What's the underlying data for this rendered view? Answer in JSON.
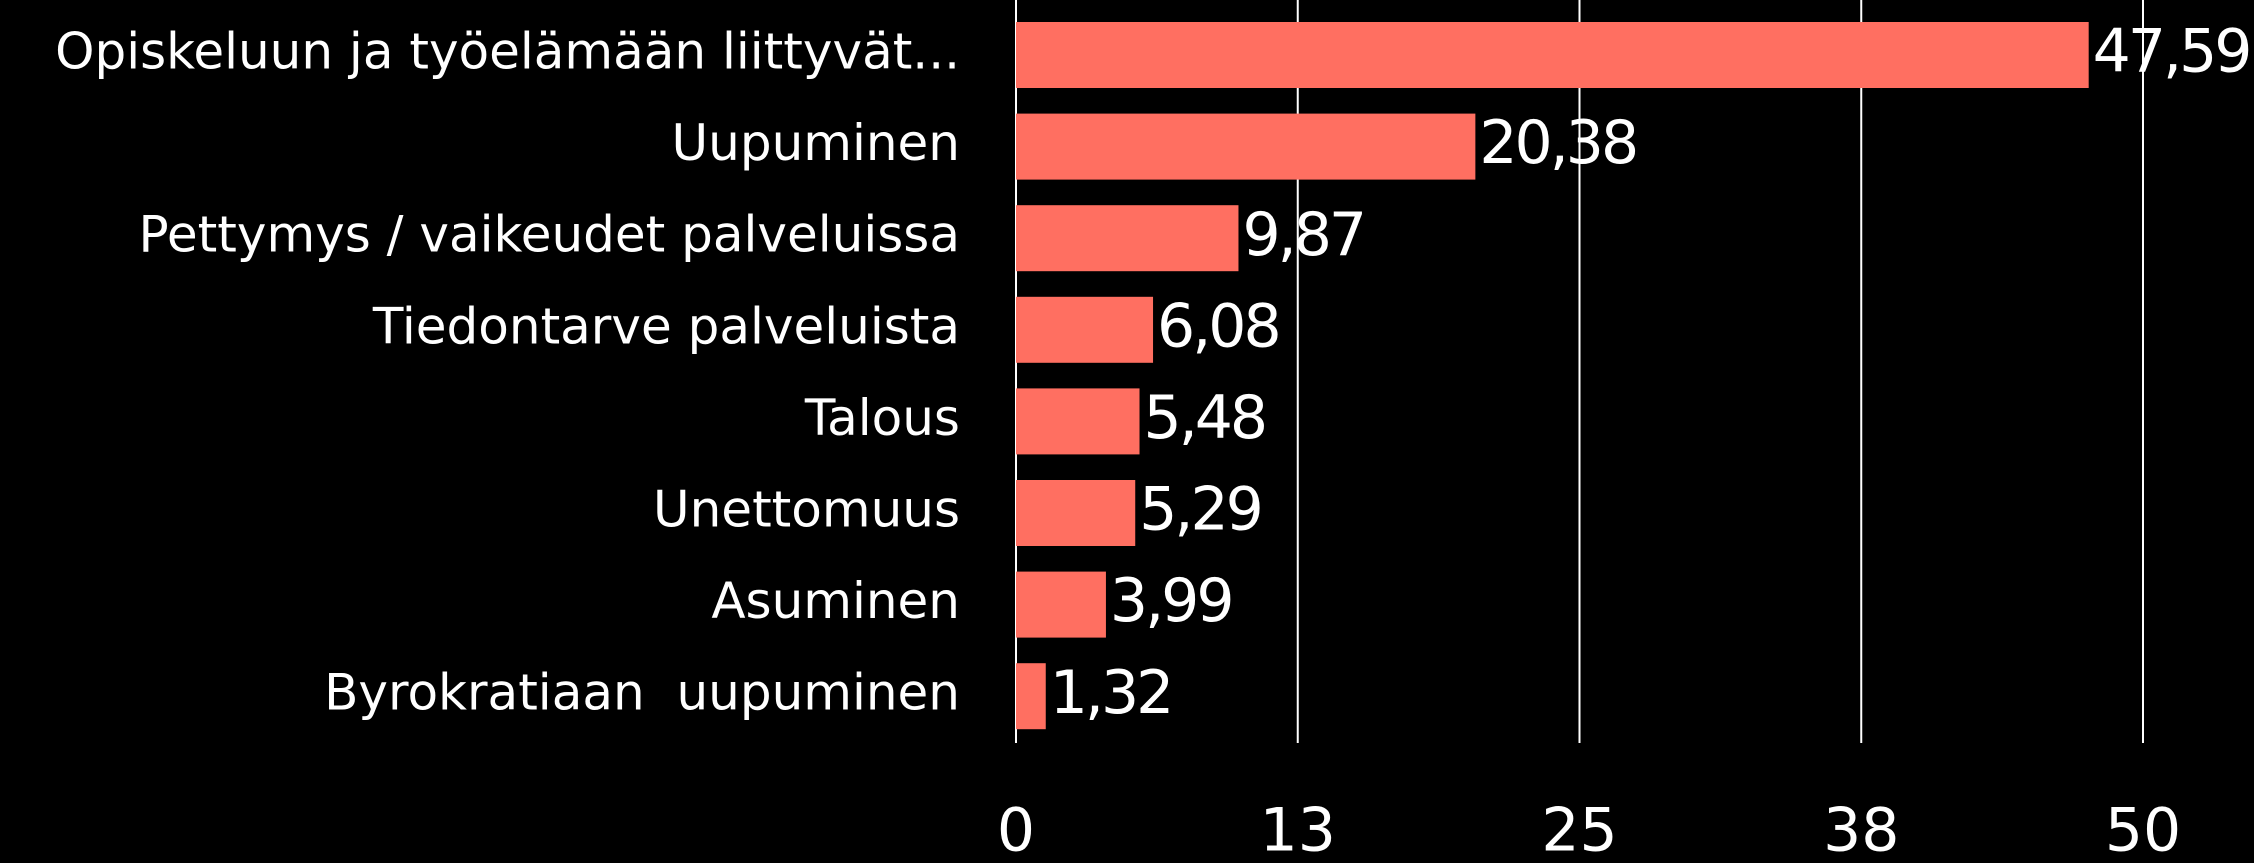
{
  "chart_data": {
    "type": "bar",
    "orientation": "horizontal",
    "categories": [
      "Opiskeluun ja työelämään liittyvät...",
      "Uupuminen",
      "Pettymys / vaikeudet palveluissa",
      "Tiedontarve palveluista",
      "Talous",
      "Unettomuus",
      "Asuminen",
      "Byrokratiaan  uupuminen"
    ],
    "values": [
      47.59,
      20.38,
      9.87,
      6.08,
      5.48,
      5.29,
      3.99,
      1.32
    ],
    "value_labels": [
      "47,59",
      "20,38",
      "9,87",
      "6,08",
      "5,48",
      "5,29",
      "3,99",
      "1,32"
    ],
    "color": "#ff6f61",
    "xlim": [
      0,
      50
    ],
    "xticks": [
      0,
      {
        "value": 12.5,
        "label": "13"
      },
      25,
      {
        "value": 37.5,
        "label": "38"
      },
      50
    ],
    "grid": true
  }
}
